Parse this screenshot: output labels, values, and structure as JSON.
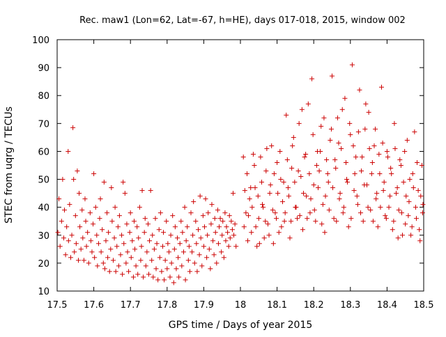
{
  "chart_data": {
    "type": "scatter",
    "title": "Rec. maw1 (Lon=62, Lat=-67, h=HE), days 017-018, 2015, window 002",
    "xlabel": "GPS time / Days of year 2015",
    "ylabel": "STEC from uqrg / TECUs",
    "xlim": [
      17.5,
      18.5
    ],
    "ylim": [
      10,
      100
    ],
    "xticks": [
      "17.5",
      "17.6",
      "17.7",
      "17.8",
      "17.9",
      "18",
      "18.1",
      "18.2",
      "18.3",
      "18.4",
      "18.5"
    ],
    "yticks": [
      "10",
      "20",
      "30",
      "40",
      "50",
      "60",
      "70",
      "80",
      "90",
      "100"
    ],
    "grid": false,
    "marker": "+",
    "marker_color": "#cc0000",
    "points": [
      [
        17.502,
        31
      ],
      [
        17.505,
        43
      ],
      [
        17.508,
        26
      ],
      [
        17.512,
        35
      ],
      [
        17.515,
        50
      ],
      [
        17.518,
        29
      ],
      [
        17.52,
        39
      ],
      [
        17.523,
        23
      ],
      [
        17.526,
        33
      ],
      [
        17.53,
        60
      ],
      [
        17.531,
        28
      ],
      [
        17.534,
        41
      ],
      [
        17.537,
        22
      ],
      [
        17.54,
        30
      ],
      [
        17.543,
        68.5
      ],
      [
        17.545,
        50
      ],
      [
        17.547,
        24
      ],
      [
        17.55,
        37
      ],
      [
        17.552,
        27
      ],
      [
        17.555,
        53
      ],
      [
        17.558,
        21
      ],
      [
        17.56,
        45
      ],
      [
        17.562,
        33
      ],
      [
        17.565,
        25
      ],
      [
        17.568,
        39
      ],
      [
        17.57,
        29
      ],
      [
        17.573,
        21
      ],
      [
        17.576,
        43
      ],
      [
        17.578,
        35
      ],
      [
        17.58,
        26
      ],
      [
        17.583,
        31
      ],
      [
        17.586,
        20
      ],
      [
        17.59,
        38
      ],
      [
        17.592,
        28
      ],
      [
        17.595,
        24
      ],
      [
        17.598,
        34
      ],
      [
        17.6,
        52
      ],
      [
        17.602,
        22
      ],
      [
        17.605,
        40
      ],
      [
        17.608,
        30
      ],
      [
        17.61,
        19
      ],
      [
        17.613,
        27
      ],
      [
        17.616,
        36
      ],
      [
        17.618,
        43
      ],
      [
        17.62,
        24
      ],
      [
        17.623,
        32
      ],
      [
        17.626,
        20
      ],
      [
        17.628,
        49
      ],
      [
        17.63,
        18
      ],
      [
        17.633,
        28
      ],
      [
        17.636,
        38
      ],
      [
        17.638,
        22
      ],
      [
        17.64,
        31
      ],
      [
        17.643,
        17
      ],
      [
        17.646,
        25
      ],
      [
        17.648,
        47
      ],
      [
        17.65,
        35
      ],
      [
        17.653,
        21
      ],
      [
        17.656,
        29
      ],
      [
        17.658,
        40
      ],
      [
        17.66,
        17
      ],
      [
        17.663,
        26
      ],
      [
        17.666,
        33
      ],
      [
        17.668,
        19
      ],
      [
        17.67,
        37
      ],
      [
        17.673,
        23
      ],
      [
        17.676,
        30
      ],
      [
        17.678,
        16
      ],
      [
        17.68,
        49
      ],
      [
        17.682,
        27
      ],
      [
        17.685,
        45
      ],
      [
        17.688,
        20
      ],
      [
        17.69,
        34
      ],
      [
        17.692,
        24
      ],
      [
        17.695,
        17
      ],
      [
        17.698,
        31
      ],
      [
        17.7,
        38
      ],
      [
        17.702,
        22
      ],
      [
        17.705,
        28
      ],
      [
        17.708,
        15
      ],
      [
        17.71,
        35
      ],
      [
        17.712,
        25
      ],
      [
        17.715,
        19
      ],
      [
        17.718,
        33
      ],
      [
        17.72,
        16
      ],
      [
        17.722,
        29
      ],
      [
        17.725,
        40
      ],
      [
        17.728,
        21
      ],
      [
        17.73,
        26
      ],
      [
        17.732,
        46
      ],
      [
        17.735,
        15
      ],
      [
        17.738,
        31
      ],
      [
        17.74,
        36
      ],
      [
        17.742,
        19
      ],
      [
        17.745,
        24
      ],
      [
        17.748,
        34
      ],
      [
        17.75,
        16
      ],
      [
        17.752,
        28
      ],
      [
        17.755,
        46
      ],
      [
        17.758,
        21
      ],
      [
        17.76,
        30
      ],
      [
        17.762,
        15
      ],
      [
        17.765,
        25
      ],
      [
        17.768,
        36
      ],
      [
        17.77,
        18
      ],
      [
        17.772,
        27
      ],
      [
        17.775,
        14
      ],
      [
        17.778,
        32
      ],
      [
        17.78,
        22
      ],
      [
        17.782,
        38
      ],
      [
        17.785,
        17
      ],
      [
        17.788,
        26
      ],
      [
        17.79,
        31
      ],
      [
        17.792,
        14
      ],
      [
        17.795,
        21
      ],
      [
        17.798,
        35
      ],
      [
        17.8,
        18
      ],
      [
        17.802,
        27
      ],
      [
        17.805,
        24
      ],
      [
        17.808,
        15
      ],
      [
        17.81,
        30
      ],
      [
        17.812,
        20
      ],
      [
        17.815,
        37
      ],
      [
        17.818,
        13
      ],
      [
        17.82,
        25
      ],
      [
        17.822,
        33
      ],
      [
        17.825,
        18
      ],
      [
        17.828,
        29
      ],
      [
        17.83,
        22
      ],
      [
        17.832,
        15
      ],
      [
        17.835,
        27
      ],
      [
        17.838,
        35
      ],
      [
        17.84,
        19
      ],
      [
        17.842,
        31
      ],
      [
        17.845,
        24
      ],
      [
        17.848,
        40
      ],
      [
        17.85,
        14
      ],
      [
        17.852,
        28
      ],
      [
        17.855,
        33
      ],
      [
        17.858,
        21
      ],
      [
        17.86,
        26
      ],
      [
        17.862,
        17
      ],
      [
        17.865,
        38
      ],
      [
        17.868,
        24
      ],
      [
        17.87,
        30
      ],
      [
        17.872,
        42
      ],
      [
        17.875,
        20
      ],
      [
        17.878,
        35
      ],
      [
        17.88,
        27
      ],
      [
        17.882,
        17
      ],
      [
        17.885,
        32
      ],
      [
        17.888,
        23
      ],
      [
        17.89,
        44
      ],
      [
        17.892,
        29
      ],
      [
        17.895,
        19
      ],
      [
        17.898,
        37
      ],
      [
        17.9,
        26
      ],
      [
        17.902,
        33
      ],
      [
        17.905,
        43
      ],
      [
        17.908,
        22
      ],
      [
        17.91,
        30
      ],
      [
        17.912,
        38
      ],
      [
        17.915,
        25
      ],
      [
        17.918,
        18
      ],
      [
        17.92,
        34
      ],
      [
        17.922,
        41
      ],
      [
        17.925,
        28
      ],
      [
        17.928,
        23
      ],
      [
        17.93,
        36
      ],
      [
        17.932,
        31
      ],
      [
        17.935,
        20
      ],
      [
        17.938,
        39
      ],
      [
        17.94,
        27
      ],
      [
        17.942,
        33
      ],
      [
        17.945,
        36
      ],
      [
        17.948,
        24
      ],
      [
        17.95,
        30
      ],
      [
        17.952,
        35
      ],
      [
        17.955,
        22
      ],
      [
        17.958,
        38
      ],
      [
        17.96,
        28
      ],
      [
        17.962,
        33
      ],
      [
        17.965,
        31
      ],
      [
        17.968,
        26
      ],
      [
        17.97,
        37
      ],
      [
        17.972,
        29
      ],
      [
        17.975,
        35
      ],
      [
        17.978,
        32
      ],
      [
        17.98,
        45
      ],
      [
        17.982,
        30
      ],
      [
        17.985,
        34
      ],
      [
        17.988,
        26
      ],
      [
        18.01,
        33
      ],
      [
        18.015,
        38
      ],
      [
        18.02,
        28
      ],
      [
        18.025,
        43
      ],
      [
        18.03,
        31
      ],
      [
        18.035,
        59
      ],
      [
        18.04,
        47
      ],
      [
        18.045,
        26
      ],
      [
        18.05,
        36
      ],
      [
        18.055,
        58
      ],
      [
        18.06,
        41
      ],
      [
        18.065,
        29
      ],
      [
        18.07,
        53
      ],
      [
        18.075,
        34
      ],
      [
        18.08,
        45
      ],
      [
        18.085,
        62
      ],
      [
        18.09,
        27
      ],
      [
        18.095,
        38
      ],
      [
        18.1,
        56
      ],
      [
        18.105,
        31
      ],
      [
        18.11,
        50
      ],
      [
        18.115,
        42
      ],
      [
        18.12,
        35
      ],
      [
        18.125,
        73
      ],
      [
        18.13,
        47
      ],
      [
        18.135,
        29
      ],
      [
        18.14,
        54
      ],
      [
        18.145,
        65
      ],
      [
        18.15,
        40
      ],
      [
        18.155,
        36
      ],
      [
        18.16,
        70
      ],
      [
        18.165,
        51
      ],
      [
        18.17,
        32
      ],
      [
        18.175,
        58
      ],
      [
        18.18,
        44
      ],
      [
        18.185,
        77
      ],
      [
        18.19,
        38
      ],
      [
        18.195,
        86
      ],
      [
        18.2,
        48
      ],
      [
        18.205,
        35
      ],
      [
        18.21,
        60
      ],
      [
        18.215,
        53
      ],
      [
        18.22,
        69
      ],
      [
        18.225,
        41
      ],
      [
        18.23,
        31
      ],
      [
        18.235,
        57
      ],
      [
        18.24,
        49
      ],
      [
        18.245,
        64
      ],
      [
        18.25,
        87
      ],
      [
        18.255,
        36
      ],
      [
        18.26,
        54
      ],
      [
        18.265,
        72
      ],
      [
        18.27,
        43
      ],
      [
        18.275,
        61
      ],
      [
        18.28,
        38
      ],
      [
        18.285,
        79
      ],
      [
        18.29,
        50
      ],
      [
        18.295,
        33
      ],
      [
        18.3,
        66
      ],
      [
        18.305,
        91
      ],
      [
        18.31,
        46
      ],
      [
        18.315,
        58
      ],
      [
        18.32,
        41
      ],
      [
        18.325,
        82
      ],
      [
        18.33,
        53
      ],
      [
        18.335,
        35
      ],
      [
        18.34,
        68
      ],
      [
        18.345,
        48
      ],
      [
        18.35,
        74
      ],
      [
        18.355,
        39
      ],
      [
        18.36,
        56
      ],
      [
        18.365,
        62
      ],
      [
        18.37,
        43
      ],
      [
        18.375,
        33
      ],
      [
        18.38,
        52
      ],
      [
        18.385,
        83
      ],
      [
        18.39,
        46
      ],
      [
        18.395,
        37
      ],
      [
        18.4,
        60
      ],
      [
        18.405,
        40
      ],
      [
        18.41,
        54
      ],
      [
        18.415,
        32
      ],
      [
        18.42,
        70
      ],
      [
        18.425,
        45
      ],
      [
        18.43,
        29
      ],
      [
        18.435,
        57
      ],
      [
        18.44,
        38
      ],
      [
        18.445,
        49
      ],
      [
        18.45,
        34
      ],
      [
        18.455,
        64
      ],
      [
        18.46,
        42
      ],
      [
        18.465,
        30
      ],
      [
        18.47,
        52
      ],
      [
        18.475,
        67
      ],
      [
        18.48,
        36
      ],
      [
        18.485,
        46
      ],
      [
        18.49,
        28
      ],
      [
        18.495,
        55
      ],
      [
        18.498,
        41
      ],
      [
        18.008,
        58
      ],
      [
        18.012,
        46
      ],
      [
        18.018,
        52
      ],
      [
        18.022,
        37
      ],
      [
        18.028,
        47
      ],
      [
        18.032,
        40
      ],
      [
        18.038,
        55
      ],
      [
        18.042,
        33
      ],
      [
        18.048,
        44
      ],
      [
        18.052,
        27
      ],
      [
        18.058,
        49
      ],
      [
        18.062,
        40
      ],
      [
        18.068,
        35
      ],
      [
        18.072,
        61
      ],
      [
        18.078,
        30
      ],
      [
        18.082,
        48
      ],
      [
        18.088,
        39
      ],
      [
        18.092,
        52
      ],
      [
        18.098,
        36
      ],
      [
        18.102,
        45
      ],
      [
        18.108,
        60
      ],
      [
        18.112,
        33
      ],
      [
        18.118,
        49
      ],
      [
        18.122,
        38
      ],
      [
        18.128,
        57
      ],
      [
        18.132,
        44
      ],
      [
        18.138,
        35
      ],
      [
        18.142,
        62
      ],
      [
        18.148,
        49
      ],
      [
        18.152,
        40
      ],
      [
        18.158,
        53
      ],
      [
        18.162,
        37
      ],
      [
        18.168,
        75
      ],
      [
        18.172,
        45
      ],
      [
        18.178,
        59
      ],
      [
        18.182,
        36
      ],
      [
        18.188,
        52
      ],
      [
        18.192,
        43
      ],
      [
        18.198,
        66
      ],
      [
        18.202,
        39
      ],
      [
        18.208,
        55
      ],
      [
        18.212,
        47
      ],
      [
        18.218,
        60
      ],
      [
        18.222,
        34
      ],
      [
        18.228,
        72
      ],
      [
        18.232,
        44
      ],
      [
        18.238,
        52
      ],
      [
        18.242,
        39
      ],
      [
        18.248,
        68
      ],
      [
        18.252,
        47
      ],
      [
        18.258,
        57
      ],
      [
        18.262,
        35
      ],
      [
        18.268,
        63
      ],
      [
        18.272,
        45
      ],
      [
        18.278,
        75
      ],
      [
        18.282,
        40
      ],
      [
        18.288,
        56
      ],
      [
        18.292,
        49
      ],
      [
        18.298,
        70
      ],
      [
        18.302,
        36
      ],
      [
        18.308,
        62
      ],
      [
        18.312,
        52
      ],
      [
        18.318,
        44
      ],
      [
        18.322,
        67
      ],
      [
        18.328,
        38
      ],
      [
        18.332,
        58
      ],
      [
        18.338,
        48
      ],
      [
        18.342,
        77
      ],
      [
        18.348,
        40
      ],
      [
        18.352,
        61
      ],
      [
        18.358,
        52
      ],
      [
        18.362,
        35
      ],
      [
        18.368,
        68
      ],
      [
        18.372,
        45
      ],
      [
        18.378,
        59
      ],
      [
        18.382,
        40
      ],
      [
        18.388,
        63
      ],
      [
        18.392,
        49
      ],
      [
        18.398,
        36
      ],
      [
        18.402,
        58
      ],
      [
        18.408,
        44
      ],
      [
        18.412,
        52
      ],
      [
        18.418,
        35
      ],
      [
        18.422,
        61
      ],
      [
        18.428,
        47
      ],
      [
        18.432,
        39
      ],
      [
        18.438,
        55
      ],
      [
        18.442,
        30
      ],
      [
        18.448,
        60
      ],
      [
        18.452,
        44
      ],
      [
        18.458,
        37
      ],
      [
        18.462,
        50
      ],
      [
        18.468,
        33
      ],
      [
        18.472,
        47
      ],
      [
        18.478,
        40
      ],
      [
        18.482,
        56
      ],
      [
        18.488,
        32
      ],
      [
        18.492,
        44
      ],
      [
        18.497,
        38
      ]
    ]
  }
}
